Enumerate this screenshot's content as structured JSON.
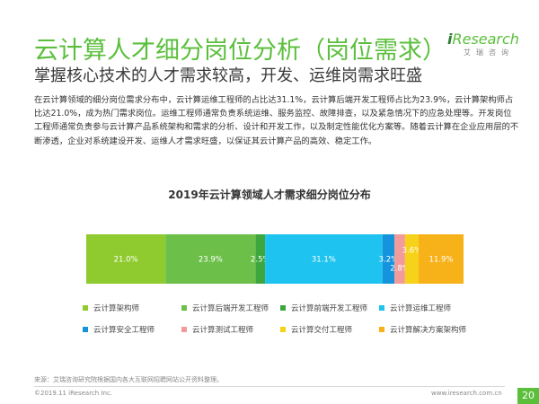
{
  "header": {
    "title": "云计算人才细分岗位分析（岗位需求）",
    "subtitle": "掌握核心技术的人才需求较高，开发、运维岗需求旺盛"
  },
  "logo": {
    "main_i": "i",
    "main_rest": "Research",
    "sub": "艾瑞咨询"
  },
  "body_text": "在云计算领域的细分岗位需求分布中，云计算运维工程师的占比达31.1%，云计算后端开发工程师占比为23.9%，云计算架构师占比达21.0%，成为热门需求岗位。运维工程师通常负责系统运维、服务监控、故障排查，以及紧急情况下的应急处理等。开发岗位工程师通常负责参与云计算产品系统架构和需求的分析、设计和开发工作，以及制定性能优化方案等。随着云计算在企业应用层的不断渗透，企业对系统建设开发、运维人才需求旺盛，以保证其云计算产品的高效、稳定工作。",
  "chart_data": {
    "type": "bar",
    "stacked": true,
    "orientation": "horizontal",
    "title": "2019年云计算领域人才需求细分岗位分布",
    "unit": "%",
    "series": [
      {
        "name": "云计算架构师",
        "values": [
          21.0
        ],
        "label": "21.0%",
        "color": "#8fcb2e"
      },
      {
        "name": "云计算后端开发工程师",
        "values": [
          23.9
        ],
        "label": "23.9%",
        "color": "#6cc04a"
      },
      {
        "name": "云计算前端开发工程师",
        "values": [
          2.5
        ],
        "label": "2.5%",
        "color": "#3ea63e"
      },
      {
        "name": "云计算运维工程师",
        "values": [
          31.1
        ],
        "label": "31.1%",
        "color": "#1ec3ef"
      },
      {
        "name": "云计算安全工程师",
        "values": [
          3.2
        ],
        "label": "3.2%",
        "color": "#1593dc"
      },
      {
        "name": "云计算测试工程师",
        "values": [
          2.8
        ],
        "label": "2.8%",
        "color": "#f29b9b"
      },
      {
        "name": "云计算交付工程师",
        "values": [
          3.6
        ],
        "label": "3.6%",
        "color": "#f7d21a"
      },
      {
        "name": "云计算解决方案架构师",
        "values": [
          11.9
        ],
        "label": "11.9%",
        "color": "#f7b21a"
      }
    ],
    "legend_position": "bottom",
    "grid": false
  },
  "footer": {
    "source": "来源：艾瑞咨询研究院根据国内各大互联网招聘网站公开资料整理。",
    "copyright": "©2019.11 iResearch Inc.",
    "website": "www.iresearch.com.cn",
    "page": "20"
  }
}
